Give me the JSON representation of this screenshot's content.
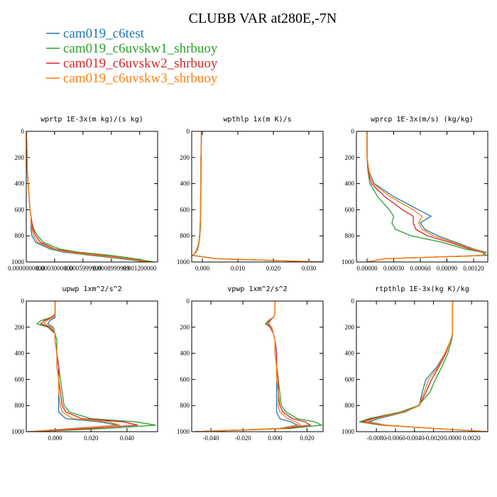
{
  "title": "CLUBB VAR at280E,-7N",
  "chart_data": [
    {
      "type": "line",
      "title": "wprtp  1E-3x(m kg)/(s kg)",
      "y": [
        0,
        100,
        200,
        300,
        400,
        500,
        600,
        650,
        700,
        750,
        800,
        850,
        900,
        925,
        950,
        975,
        1000
      ],
      "ylim": [
        1000,
        0
      ],
      "yticks": [
        0,
        200,
        400,
        600,
        800,
        1000
      ],
      "xlim": [
        0,
        0.00139
      ],
      "xticks": [
        {
          "value": 0,
          "label": "0.0000000000"
        },
        {
          "value": 0.0003,
          "label": "0.0003000000"
        },
        {
          "value": 0.0006,
          "label": "0.0005999999"
        },
        {
          "value": 0.0009,
          "label": "0.0008999999"
        },
        {
          "value": 0.0012,
          "label": "0.001200000"
        }
      ],
      "series": [
        {
          "name": "cam019_c6test",
          "color": "#1f77b4",
          "values": [
            0,
            5e-06,
            1e-05,
            1e-05,
            2e-05,
            3e-05,
            4e-05,
            5e-05,
            5e-05,
            5e-05,
            6e-05,
            0.0001,
            0.00025,
            0.0004,
            0.0007,
            0.001,
            0.00128
          ]
        },
        {
          "name": "cam019_c6uvskw1_shrbuoy",
          "color": "#2ca02c",
          "values": [
            0,
            5e-06,
            1e-05,
            1e-05,
            2e-05,
            3e-05,
            4e-05,
            5e-05,
            6e-05,
            8e-05,
            0.00012,
            0.00018,
            0.00035,
            0.00055,
            0.0009,
            0.00115,
            0.00135
          ]
        },
        {
          "name": "cam019_c6uvskw2_shrbuoy",
          "color": "#d62728",
          "values": [
            0,
            5e-06,
            1e-05,
            1e-05,
            2e-05,
            3e-05,
            4e-05,
            5e-05,
            6e-05,
            7e-05,
            0.0001,
            0.00015,
            0.0003,
            0.00048,
            0.0008,
            0.00108,
            0.00132
          ]
        },
        {
          "name": "cam019_c6uvskw3_shrbuoy",
          "color": "#ff7f0e",
          "values": [
            0,
            5e-06,
            1e-05,
            1e-05,
            2e-05,
            3e-05,
            4e-05,
            5e-05,
            5e-05,
            6e-05,
            8e-05,
            0.00012,
            0.00028,
            0.00044,
            0.00075,
            0.00105,
            0.0013
          ]
        }
      ]
    },
    {
      "type": "line",
      "title": "wpthlp  1x(m K)/s",
      "y": [
        0,
        100,
        200,
        300,
        400,
        500,
        600,
        650,
        700,
        750,
        800,
        850,
        900,
        925,
        950,
        975,
        1000
      ],
      "ylim": [
        1000,
        0
      ],
      "yticks": [
        0,
        200,
        400,
        600,
        800,
        1000
      ],
      "xlim": [
        -0.003,
        0.034
      ],
      "xticks": [
        {
          "value": 0,
          "label": "0.000"
        },
        {
          "value": 0.01,
          "label": "0.010"
        },
        {
          "value": 0.02,
          "label": "0.020"
        },
        {
          "value": 0.03,
          "label": "0.030"
        }
      ],
      "series": [
        {
          "name": "cam019_c6test",
          "color": "#1f77b4",
          "values": [
            -0.0003,
            -0.0003,
            -0.0004,
            -0.0004,
            -0.0004,
            -0.0005,
            -0.0005,
            -0.0005,
            -0.0006,
            -0.0007,
            -0.0008,
            -0.001,
            -0.0015,
            -0.002,
            -0.0025,
            0.004,
            0.034
          ]
        },
        {
          "name": "cam019_c6uvskw1_shrbuoy",
          "color": "#2ca02c",
          "values": [
            -0.0002,
            -0.0003,
            -0.0003,
            -0.0004,
            -0.0004,
            -0.0004,
            -0.0005,
            -0.0005,
            -0.0005,
            -0.0006,
            -0.0007,
            -0.0009,
            -0.0013,
            -0.0018,
            -0.0028,
            0.004,
            0.034
          ]
        },
        {
          "name": "cam019_c6uvskw2_shrbuoy",
          "color": "#d62728",
          "values": [
            -0.0003,
            -0.0003,
            -0.0004,
            -0.0004,
            -0.0004,
            -0.0005,
            -0.0005,
            -0.0005,
            -0.0006,
            -0.0006,
            -0.0008,
            -0.001,
            -0.0014,
            -0.0019,
            -0.0027,
            0.004,
            0.034
          ]
        },
        {
          "name": "cam019_c6uvskw3_shrbuoy",
          "color": "#ff7f0e",
          "values": [
            -0.0003,
            -0.0003,
            -0.0004,
            -0.0004,
            -0.0004,
            -0.0005,
            -0.0005,
            -0.0005,
            -0.0006,
            -0.0007,
            -0.0008,
            -0.001,
            -0.0015,
            -0.002,
            -0.0026,
            0.004,
            0.034
          ]
        }
      ]
    },
    {
      "type": "line",
      "title": "wprcp  1E-3x(m/s) (kg/kg)",
      "y": [
        0,
        100,
        200,
        300,
        400,
        500,
        600,
        650,
        700,
        750,
        800,
        850,
        900,
        925,
        950,
        975,
        1000
      ],
      "ylim": [
        1000,
        0
      ],
      "yticks": [
        0,
        200,
        400,
        600,
        800,
        1000
      ],
      "xlim": [
        -0.00012,
        0.00136
      ],
      "xticks": [
        {
          "value": 0,
          "label": "0.00000"
        },
        {
          "value": 0.0003,
          "label": "0.00030"
        },
        {
          "value": 0.0006,
          "label": "0.00060"
        },
        {
          "value": 0.0009,
          "label": "0.00090"
        },
        {
          "value": 0.0012,
          "label": "0.00120"
        }
      ],
      "series": [
        {
          "name": "cam019_c6test",
          "color": "#1f77b4",
          "values": [
            0,
            0,
            0,
            2e-05,
            8e-05,
            0.0003,
            0.00058,
            0.00072,
            0.0006,
            0.00065,
            0.0008,
            0.001,
            0.0012,
            0.00134,
            0.0013,
            0.0002,
            0
          ]
        },
        {
          "name": "cam019_c6uvskw1_shrbuoy",
          "color": "#2ca02c",
          "values": [
            0,
            0,
            0,
            1e-05,
            3e-05,
            0.00012,
            0.00025,
            0.0003,
            0.00028,
            0.00032,
            0.0005,
            0.00085,
            0.0011,
            0.0013,
            0.00135,
            0.0002,
            0
          ]
        },
        {
          "name": "cam019_c6uvskw2_shrbuoy",
          "color": "#d62728",
          "values": [
            0,
            0,
            0,
            1e-05,
            5e-05,
            0.0002,
            0.0004,
            0.00052,
            0.00052,
            0.00055,
            0.00068,
            0.00093,
            0.00115,
            0.00132,
            0.0013,
            0.0002,
            0
          ]
        },
        {
          "name": "cam019_c6uvskw3_shrbuoy",
          "color": "#ff7f0e",
          "values": [
            0,
            0,
            0,
            2e-05,
            7e-05,
            0.00026,
            0.00052,
            0.00062,
            0.00058,
            0.00062,
            0.00075,
            0.00097,
            0.00118,
            0.00133,
            0.0013,
            0.0002,
            0
          ]
        }
      ]
    },
    {
      "type": "line",
      "title": "upwp  1xm^2/s^2",
      "y": [
        0,
        100,
        125,
        150,
        175,
        200,
        250,
        300,
        400,
        500,
        600,
        700,
        800,
        850,
        900,
        925,
        950,
        975,
        1000
      ],
      "ylim": [
        1000,
        0
      ],
      "yticks": [
        0,
        200,
        400,
        600,
        800,
        1000
      ],
      "xlim": [
        -0.016,
        0.057
      ],
      "xticks": [
        {
          "value": 0,
          "label": "0.000"
        },
        {
          "value": 0.02,
          "label": "0.020"
        },
        {
          "value": 0.04,
          "label": "0.040"
        }
      ],
      "series": [
        {
          "name": "cam019_c6test",
          "color": "#1f77b4",
          "values": [
            0,
            0,
            0,
            -0.003,
            -0.004,
            -0.001,
            0,
            0,
            0.001,
            0.001,
            0.002,
            0.002,
            0.002,
            0.002,
            0.006,
            0.025,
            0.035,
            0.01,
            -0.015
          ]
        },
        {
          "name": "cam019_c6uvskw1_shrbuoy",
          "color": "#2ca02c",
          "values": [
            0,
            0,
            -0.002,
            -0.008,
            -0.01,
            -0.004,
            0,
            0.001,
            0.001,
            0.002,
            0.003,
            0.004,
            0.005,
            0.008,
            0.02,
            0.045,
            0.056,
            0.03,
            -0.015
          ]
        },
        {
          "name": "cam019_c6uvskw2_shrbuoy",
          "color": "#d62728",
          "values": [
            0,
            0,
            -0.002,
            -0.006,
            -0.008,
            -0.003,
            0,
            0,
            0.001,
            0.002,
            0.002,
            0.003,
            0.004,
            0.006,
            0.015,
            0.038,
            0.046,
            0.02,
            -0.015
          ]
        },
        {
          "name": "cam019_c6uvskw3_shrbuoy",
          "color": "#ff7f0e",
          "values": [
            0,
            0,
            -0.001,
            -0.005,
            -0.006,
            -0.002,
            0,
            0,
            0.001,
            0.001,
            0.002,
            0.002,
            0.003,
            0.004,
            0.01,
            0.03,
            0.036,
            0.012,
            -0.015
          ]
        }
      ]
    },
    {
      "type": "line",
      "title": "vpwp  1xm^2/s^2",
      "y": [
        0,
        100,
        125,
        150,
        175,
        200,
        250,
        300,
        400,
        500,
        600,
        700,
        800,
        850,
        900,
        925,
        950,
        975,
        1000
      ],
      "ylim": [
        1000,
        0
      ],
      "yticks": [
        0,
        200,
        400,
        600,
        800,
        1000
      ],
      "xlim": [
        -0.052,
        0.03
      ],
      "xticks": [
        {
          "value": -0.04,
          "label": "-0.040"
        },
        {
          "value": -0.02,
          "label": "-0.020"
        },
        {
          "value": 0,
          "label": "0.000"
        },
        {
          "value": 0.02,
          "label": "0.020"
        }
      ],
      "series": [
        {
          "name": "cam019_c6test",
          "color": "#1f77b4",
          "values": [
            0,
            0,
            -0.001,
            -0.003,
            -0.004,
            -0.002,
            -0.001,
            0,
            0,
            0.001,
            0.001,
            0.001,
            0.001,
            0.001,
            0.003,
            0.01,
            0.014,
            0.003,
            -0.05
          ]
        },
        {
          "name": "cam019_c6uvskw1_shrbuoy",
          "color": "#2ca02c",
          "values": [
            0,
            0,
            -0.001,
            -0.004,
            -0.006,
            -0.003,
            -0.001,
            0,
            0.001,
            0.001,
            0.002,
            0.003,
            0.004,
            0.007,
            0.014,
            0.025,
            0.029,
            0.01,
            -0.05
          ]
        },
        {
          "name": "cam019_c6uvskw2_shrbuoy",
          "color": "#d62728",
          "values": [
            0,
            0,
            -0.001,
            -0.004,
            -0.005,
            -0.003,
            -0.001,
            0,
            0.001,
            0.001,
            0.002,
            0.002,
            0.003,
            0.005,
            0.011,
            0.019,
            0.022,
            0.006,
            -0.05
          ]
        },
        {
          "name": "cam019_c6uvskw3_shrbuoy",
          "color": "#ff7f0e",
          "values": [
            0,
            0,
            -0.001,
            -0.003,
            -0.005,
            -0.002,
            -0.001,
            0,
            0,
            0.001,
            0.001,
            0.002,
            0.002,
            0.003,
            0.008,
            0.013,
            0.016,
            0.004,
            -0.05
          ]
        }
      ]
    },
    {
      "type": "line",
      "title": "rtpthlp  1E-3x(kg K)/kg",
      "y": [
        0,
        100,
        125,
        150,
        175,
        200,
        250,
        300,
        400,
        500,
        600,
        700,
        800,
        850,
        900,
        925,
        950,
        975,
        1000
      ],
      "ylim": [
        1000,
        0
      ],
      "yticks": [
        0,
        200,
        400,
        600,
        800,
        1000
      ],
      "xlim": [
        -0.0101,
        0.0037
      ],
      "xticks": [
        {
          "value": -0.008,
          "label": "-0.0080"
        },
        {
          "value": -0.006,
          "label": "-0.0060"
        },
        {
          "value": -0.004,
          "label": "-0.0040"
        },
        {
          "value": -0.002,
          "label": "-0.0020"
        },
        {
          "value": 0,
          "label": "0.0000"
        },
        {
          "value": 0.002,
          "label": "0.0020"
        }
      ],
      "series": [
        {
          "name": "cam019_c6test",
          "color": "#1f77b4",
          "values": [
            0,
            0,
            0,
            0,
            0,
            0,
            0,
            -0.0002,
            -0.0008,
            -0.0016,
            -0.0028,
            -0.0032,
            -0.0035,
            -0.005,
            -0.0078,
            -0.0088,
            -0.007,
            -0.002,
            0.0036
          ]
        },
        {
          "name": "cam019_c6uvskw1_shrbuoy",
          "color": "#2ca02c",
          "values": [
            0,
            0,
            0,
            0,
            0,
            0,
            0,
            -0.0001,
            -0.0005,
            -0.0011,
            -0.0018,
            -0.0024,
            -0.0036,
            -0.0055,
            -0.0088,
            -0.0098,
            -0.0075,
            -0.002,
            0.0036
          ]
        },
        {
          "name": "cam019_c6uvskw2_shrbuoy",
          "color": "#d62728",
          "values": [
            0,
            0,
            0,
            0,
            0,
            0,
            0,
            -0.0002,
            -0.0007,
            -0.0014,
            -0.0022,
            -0.0028,
            -0.0035,
            -0.0052,
            -0.0085,
            -0.0095,
            -0.0072,
            -0.002,
            0.0036
          ]
        },
        {
          "name": "cam019_c6uvskw3_shrbuoy",
          "color": "#ff7f0e",
          "values": [
            0,
            0,
            0,
            0,
            0,
            0,
            0,
            -0.0002,
            -0.0008,
            -0.0015,
            -0.0025,
            -0.003,
            -0.0035,
            -0.0051,
            -0.0082,
            -0.0092,
            -0.0071,
            -0.002,
            0.0036
          ]
        }
      ]
    }
  ]
}
